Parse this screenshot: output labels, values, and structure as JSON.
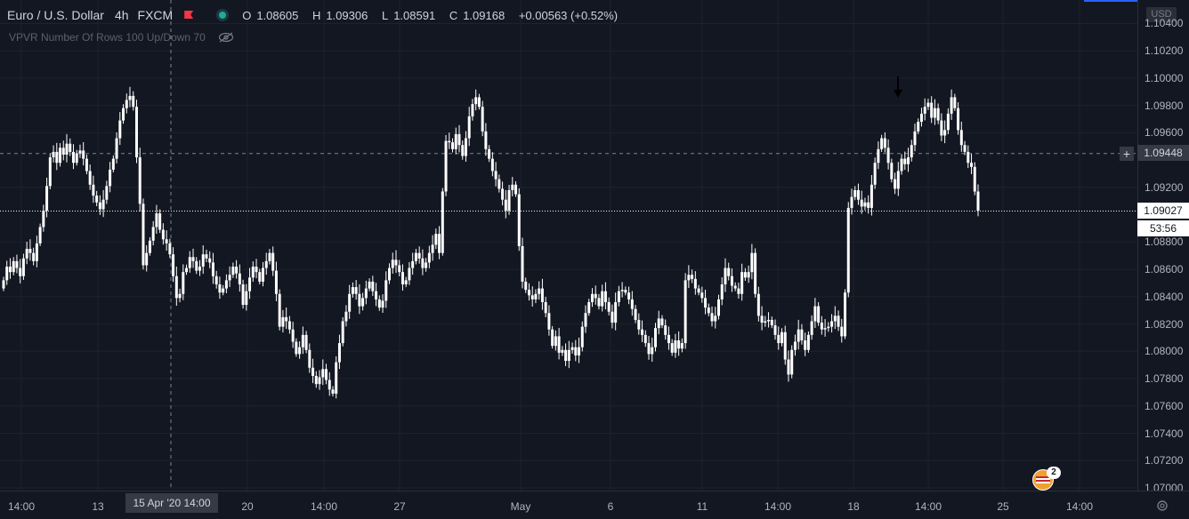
{
  "header": {
    "symbol": "Euro / U.S. Dollar",
    "timeframe": "4h",
    "source": "FXCM",
    "open_label": "O",
    "open": "1.08605",
    "high_label": "H",
    "high": "1.09306",
    "low_label": "L",
    "low": "1.08591",
    "close_label": "C",
    "close": "1.09168",
    "change": "+0.00563 (+0.52%)"
  },
  "indicator": {
    "label": "VPVR Number Of Rows 100 Up/Down 70"
  },
  "price_axis": {
    "currency": "USD",
    "labels": [
      "1.10400",
      "1.10200",
      "1.10000",
      "1.09800",
      "1.09600",
      "1.09200",
      "1.08800",
      "1.08600",
      "1.08400",
      "1.08200",
      "1.08000",
      "1.07800",
      "1.07600",
      "1.07400",
      "1.07200",
      "1.07000"
    ],
    "crosshair_price": "1.09448",
    "last_price": "1.09027",
    "countdown": "53:56"
  },
  "time_axis": {
    "labels": [
      "14:00",
      "13",
      "20",
      "14:00",
      "27",
      "May",
      "6",
      "11",
      "14:00",
      "18",
      "14:00",
      "25",
      "14:00"
    ],
    "crosshair_time": "15 Apr '20  14:00"
  },
  "news": {
    "count": "2"
  },
  "colors": {
    "background": "#131722",
    "candle": "#ffffff",
    "grid": "#1f2330",
    "accent": "#2962ff"
  },
  "chart_data": {
    "type": "candlestick",
    "ylim": [
      1.07,
      1.1052
    ],
    "close_series": [
      1.0852,
      1.0862,
      1.0858,
      1.0866,
      1.0861,
      1.0855,
      1.0868,
      1.0875,
      1.0872,
      1.0866,
      1.0879,
      1.0891,
      1.0903,
      1.0921,
      1.0942,
      1.0946,
      1.0938,
      1.0949,
      1.0944,
      1.0952,
      1.0946,
      1.0938,
      1.0945,
      1.0947,
      1.0941,
      1.0932,
      1.0922,
      1.0914,
      1.0909,
      1.0904,
      1.0911,
      1.0921,
      1.0933,
      1.0941,
      1.0956,
      1.0969,
      1.0978,
      1.0984,
      1.0987,
      1.0979,
      1.0942,
      1.0908,
      1.0863,
      1.0872,
      1.0881,
      1.0891,
      1.0901,
      1.0889,
      1.0882,
      1.0879,
      1.0871,
      1.0855,
      1.0839,
      1.0842,
      1.0858,
      1.0861,
      1.0869,
      1.0866,
      1.0859,
      1.0862,
      1.0871,
      1.0868,
      1.0865,
      1.0855,
      1.0849,
      1.0843,
      1.0846,
      1.0852,
      1.0856,
      1.0862,
      1.0857,
      1.0849,
      1.0834,
      1.0844,
      1.0854,
      1.0862,
      1.0858,
      1.0851,
      1.0861,
      1.0866,
      1.0872,
      1.0859,
      1.0842,
      1.0818,
      1.0825,
      1.0822,
      1.0816,
      1.0807,
      1.0798,
      1.0803,
      1.0812,
      1.0801,
      1.0788,
      1.0782,
      1.0776,
      1.0781,
      1.0787,
      1.0779,
      1.0772,
      1.0769,
      1.0792,
      1.0806,
      1.0822,
      1.0829,
      1.0842,
      1.0847,
      1.0842,
      1.0833,
      1.0839,
      1.0846,
      1.0851,
      1.0844,
      1.0838,
      1.0832,
      1.0837,
      1.0852,
      1.0861,
      1.0867,
      1.0863,
      1.0858,
      1.0849,
      1.0852,
      1.0861,
      1.0866,
      1.0872,
      1.0868,
      1.0861,
      1.0865,
      1.0872,
      1.0878,
      1.0886,
      1.0872,
      1.0917,
      1.0954,
      1.0953,
      1.0948,
      1.0959,
      1.0951,
      1.0943,
      1.0956,
      1.0972,
      1.0981,
      1.0986,
      1.0979,
      1.0961,
      1.0948,
      1.0941,
      1.0932,
      1.0926,
      1.0919,
      1.0911,
      1.0903,
      1.0918,
      1.0922,
      1.0915,
      1.0877,
      1.0851,
      1.0845,
      1.0841,
      1.0838,
      1.0842,
      1.0846,
      1.0836,
      1.0828,
      1.0816,
      1.0804,
      1.0811,
      1.0799,
      1.0801,
      1.0793,
      1.0801,
      1.0803,
      1.0797,
      1.0803,
      1.0818,
      1.0828,
      1.0836,
      1.0842,
      1.0839,
      1.0833,
      1.0844,
      1.0836,
      1.0829,
      1.0821,
      1.0836,
      1.0844,
      1.0845,
      1.0843,
      1.0838,
      1.0831,
      1.0823,
      1.0816,
      1.0812,
      1.0806,
      1.0798,
      1.0803,
      1.0817,
      1.0824,
      1.0819,
      1.0812,
      1.0806,
      1.0799,
      1.0808,
      1.0802,
      1.0806,
      1.0852,
      1.0856,
      1.0853,
      1.0846,
      1.0843,
      1.0839,
      1.0832,
      1.0828,
      1.0822,
      1.0826,
      1.0838,
      1.0849,
      1.0861,
      1.0855,
      1.0848,
      1.0846,
      1.0842,
      1.0858,
      1.0854,
      1.0858,
      1.0872,
      1.0842,
      1.0826,
      1.0821,
      1.0822,
      1.0823,
      1.0819,
      1.0812,
      1.0806,
      1.0814,
      1.0794,
      1.0783,
      1.0801,
      1.0807,
      1.0816,
      1.0808,
      1.0801,
      1.0812,
      1.0822,
      1.0833,
      1.0821,
      1.0816,
      1.0817,
      1.0818,
      1.0822,
      1.0826,
      1.0818,
      1.0811,
      1.0843,
      1.0905,
      1.0913,
      1.0918,
      1.0911,
      1.0906,
      1.0909,
      1.0905,
      1.0922,
      1.0938,
      1.0948,
      1.0956,
      1.0949,
      1.0938,
      1.0926,
      1.0919,
      1.0932,
      1.0941,
      1.0937,
      1.0942,
      1.0951,
      1.0961,
      1.0968,
      1.0974,
      1.0979,
      1.0982,
      1.0971,
      1.0978,
      1.0969,
      1.0958,
      1.0962,
      1.0974,
      1.0986,
      1.0978,
      1.0962,
      1.0951,
      1.0946,
      1.0938,
      1.0935,
      1.0917,
      1.0903
    ],
    "annotation": "down-arrow above peak near 18–19 May"
  }
}
